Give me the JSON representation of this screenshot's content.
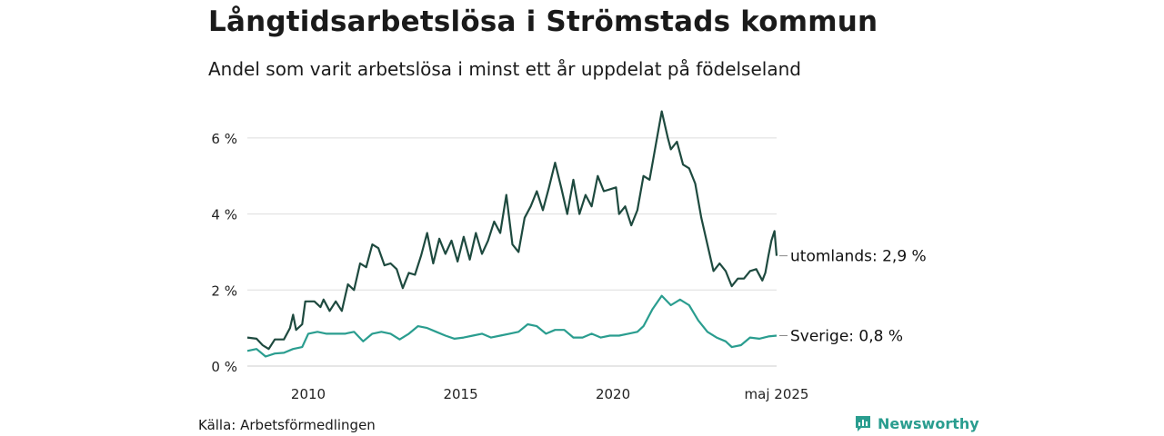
{
  "title": "Långtidsarbetslösa i Strömstads kommun",
  "subtitle": "Andel som varit arbetslösa i minst ett år uppdelat på födelseland",
  "source": "Källa: Arbetsförmedlingen",
  "brand": "Newsworthy",
  "colors": {
    "utomlands": "#1e4a3f",
    "sverige": "#2a9d8f",
    "grid": "#dddddd"
  },
  "chart_data": {
    "type": "line",
    "title": "Långtidsarbetslösa i Strömstads kommun",
    "xlabel": "",
    "ylabel": "",
    "x_range": [
      2008.0,
      2025.37
    ],
    "ylim": [
      0,
      7
    ],
    "yticks": [
      0,
      2,
      4,
      6
    ],
    "ytick_labels": [
      "0 %",
      "2 %",
      "4 %",
      "6 %"
    ],
    "xticks": [
      2010,
      2015,
      2020,
      2025.37
    ],
    "xtick_labels": [
      "2010",
      "2015",
      "2020",
      "maj 2025"
    ],
    "grid": true,
    "series": [
      {
        "name": "utomlands",
        "end_label": "utomlands: 2,9 %",
        "points": [
          [
            2008.0,
            0.75
          ],
          [
            2008.3,
            0.72
          ],
          [
            2008.5,
            0.55
          ],
          [
            2008.7,
            0.45
          ],
          [
            2008.9,
            0.7
          ],
          [
            2009.2,
            0.7
          ],
          [
            2009.4,
            1.0
          ],
          [
            2009.5,
            1.35
          ],
          [
            2009.6,
            0.95
          ],
          [
            2009.8,
            1.1
          ],
          [
            2009.9,
            1.7
          ],
          [
            2010.2,
            1.7
          ],
          [
            2010.4,
            1.55
          ],
          [
            2010.5,
            1.75
          ],
          [
            2010.7,
            1.45
          ],
          [
            2010.9,
            1.7
          ],
          [
            2011.1,
            1.45
          ],
          [
            2011.3,
            2.15
          ],
          [
            2011.5,
            2.0
          ],
          [
            2011.7,
            2.7
          ],
          [
            2011.9,
            2.6
          ],
          [
            2012.1,
            3.2
          ],
          [
            2012.3,
            3.1
          ],
          [
            2012.5,
            2.65
          ],
          [
            2012.7,
            2.7
          ],
          [
            2012.9,
            2.55
          ],
          [
            2013.1,
            2.05
          ],
          [
            2013.3,
            2.45
          ],
          [
            2013.5,
            2.4
          ],
          [
            2013.7,
            2.9
          ],
          [
            2013.9,
            3.5
          ],
          [
            2014.1,
            2.7
          ],
          [
            2014.3,
            3.35
          ],
          [
            2014.5,
            2.95
          ],
          [
            2014.7,
            3.3
          ],
          [
            2014.9,
            2.75
          ],
          [
            2015.1,
            3.4
          ],
          [
            2015.3,
            2.8
          ],
          [
            2015.5,
            3.5
          ],
          [
            2015.7,
            2.95
          ],
          [
            2015.9,
            3.3
          ],
          [
            2016.1,
            3.8
          ],
          [
            2016.3,
            3.5
          ],
          [
            2016.5,
            4.5
          ],
          [
            2016.7,
            3.2
          ],
          [
            2016.9,
            3.0
          ],
          [
            2017.1,
            3.9
          ],
          [
            2017.3,
            4.2
          ],
          [
            2017.5,
            4.6
          ],
          [
            2017.7,
            4.1
          ],
          [
            2017.9,
            4.7
          ],
          [
            2018.1,
            5.35
          ],
          [
            2018.3,
            4.7
          ],
          [
            2018.5,
            4.0
          ],
          [
            2018.7,
            4.9
          ],
          [
            2018.9,
            4.0
          ],
          [
            2019.1,
            4.5
          ],
          [
            2019.3,
            4.2
          ],
          [
            2019.5,
            5.0
          ],
          [
            2019.7,
            4.6
          ],
          [
            2019.9,
            4.65
          ],
          [
            2020.1,
            4.7
          ],
          [
            2020.2,
            4.0
          ],
          [
            2020.4,
            4.2
          ],
          [
            2020.6,
            3.7
          ],
          [
            2020.8,
            4.1
          ],
          [
            2021.0,
            5.0
          ],
          [
            2021.2,
            4.9
          ],
          [
            2021.4,
            5.8
          ],
          [
            2021.6,
            6.7
          ],
          [
            2021.8,
            6.0
          ],
          [
            2021.9,
            5.7
          ],
          [
            2022.1,
            5.9
          ],
          [
            2022.3,
            5.3
          ],
          [
            2022.5,
            5.2
          ],
          [
            2022.7,
            4.8
          ],
          [
            2022.9,
            3.9
          ],
          [
            2023.1,
            3.2
          ],
          [
            2023.3,
            2.5
          ],
          [
            2023.5,
            2.7
          ],
          [
            2023.7,
            2.5
          ],
          [
            2023.9,
            2.1
          ],
          [
            2024.1,
            2.3
          ],
          [
            2024.3,
            2.3
          ],
          [
            2024.5,
            2.5
          ],
          [
            2024.7,
            2.55
          ],
          [
            2024.9,
            2.25
          ],
          [
            2025.0,
            2.45
          ],
          [
            2025.1,
            2.9
          ],
          [
            2025.2,
            3.3
          ],
          [
            2025.3,
            3.55
          ],
          [
            2025.37,
            2.9
          ]
        ]
      },
      {
        "name": "Sverige",
        "end_label": "Sverige: 0,8 %",
        "points": [
          [
            2008.0,
            0.4
          ],
          [
            2008.3,
            0.45
          ],
          [
            2008.6,
            0.25
          ],
          [
            2008.9,
            0.33
          ],
          [
            2009.2,
            0.35
          ],
          [
            2009.5,
            0.45
          ],
          [
            2009.8,
            0.5
          ],
          [
            2010.0,
            0.85
          ],
          [
            2010.3,
            0.9
          ],
          [
            2010.6,
            0.85
          ],
          [
            2010.9,
            0.85
          ],
          [
            2011.2,
            0.85
          ],
          [
            2011.5,
            0.9
          ],
          [
            2011.8,
            0.65
          ],
          [
            2012.1,
            0.85
          ],
          [
            2012.4,
            0.9
          ],
          [
            2012.7,
            0.85
          ],
          [
            2013.0,
            0.7
          ],
          [
            2013.3,
            0.85
          ],
          [
            2013.6,
            1.05
          ],
          [
            2013.9,
            1.0
          ],
          [
            2014.2,
            0.9
          ],
          [
            2014.5,
            0.8
          ],
          [
            2014.8,
            0.72
          ],
          [
            2015.1,
            0.75
          ],
          [
            2015.4,
            0.8
          ],
          [
            2015.7,
            0.85
          ],
          [
            2016.0,
            0.75
          ],
          [
            2016.3,
            0.8
          ],
          [
            2016.6,
            0.85
          ],
          [
            2016.9,
            0.9
          ],
          [
            2017.2,
            1.1
          ],
          [
            2017.5,
            1.05
          ],
          [
            2017.8,
            0.85
          ],
          [
            2018.1,
            0.95
          ],
          [
            2018.4,
            0.95
          ],
          [
            2018.7,
            0.75
          ],
          [
            2019.0,
            0.75
          ],
          [
            2019.3,
            0.85
          ],
          [
            2019.6,
            0.75
          ],
          [
            2019.9,
            0.8
          ],
          [
            2020.2,
            0.8
          ],
          [
            2020.5,
            0.85
          ],
          [
            2020.8,
            0.9
          ],
          [
            2021.0,
            1.05
          ],
          [
            2021.3,
            1.5
          ],
          [
            2021.6,
            1.85
          ],
          [
            2021.9,
            1.6
          ],
          [
            2022.2,
            1.75
          ],
          [
            2022.5,
            1.6
          ],
          [
            2022.8,
            1.2
          ],
          [
            2023.1,
            0.9
          ],
          [
            2023.4,
            0.75
          ],
          [
            2023.7,
            0.65
          ],
          [
            2023.9,
            0.5
          ],
          [
            2024.2,
            0.55
          ],
          [
            2024.5,
            0.75
          ],
          [
            2024.8,
            0.72
          ],
          [
            2025.1,
            0.78
          ],
          [
            2025.37,
            0.8
          ]
        ]
      }
    ]
  }
}
